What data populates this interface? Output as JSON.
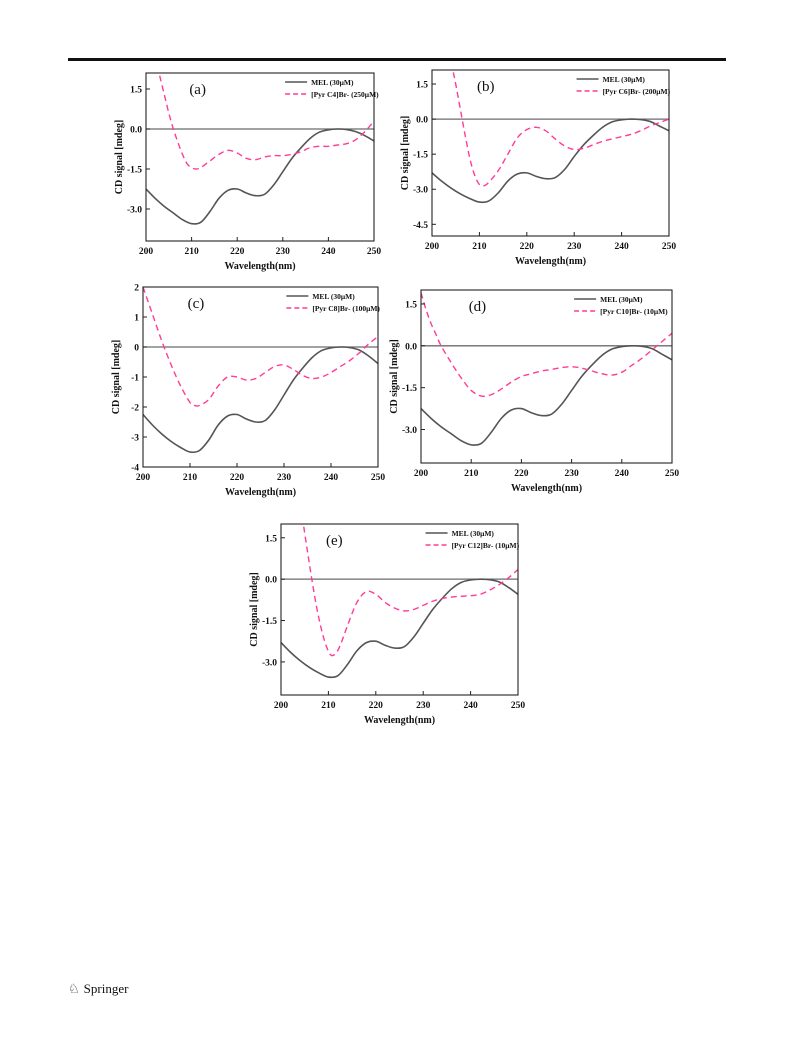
{
  "footer": {
    "publisher": "Springer",
    "logo_icon": "springer-horse-icon"
  },
  "colors": {
    "mel": "#555555",
    "il": "#ff3c96",
    "axis": "#222222"
  },
  "chart_data": [
    {
      "type": "line",
      "id": "a",
      "panel_label": "(a)",
      "xlabel": "Wavelength(nm)",
      "ylabel": "CD signal [mdeg]",
      "xlim": [
        200,
        250
      ],
      "ylim": [
        -4.2,
        2.1
      ],
      "xticks": [
        200,
        210,
        220,
        230,
        240,
        250
      ],
      "xtick_labels": [
        "200",
        "210",
        "220",
        "230",
        "240",
        "250"
      ],
      "yticks": [
        1.5,
        0,
        -1.5,
        -3
      ],
      "ytick_labels": [
        "1.5",
        "0.0",
        "-1.5",
        "-3.0"
      ],
      "zero_line": true,
      "legend": "top-right",
      "series": [
        {
          "name": "MEL (30μM)",
          "style": "solid",
          "x": [
            200,
            202,
            204,
            206,
            208,
            210,
            212,
            214,
            216,
            218,
            220,
            222,
            224,
            226,
            228,
            230,
            232,
            234,
            236,
            238,
            240,
            242,
            244,
            246,
            248,
            250
          ],
          "y": [
            -2.25,
            -2.6,
            -2.9,
            -3.15,
            -3.4,
            -3.55,
            -3.5,
            -3.1,
            -2.6,
            -2.3,
            -2.25,
            -2.4,
            -2.5,
            -2.45,
            -2.1,
            -1.6,
            -1.1,
            -0.7,
            -0.35,
            -0.12,
            -0.03,
            0.0,
            -0.02,
            -0.1,
            -0.25,
            -0.45
          ]
        },
        {
          "name": "[Pyr C4]Br- (250μM)",
          "style": "dashed",
          "x": [
            203,
            204,
            205,
            206,
            207,
            208,
            209,
            210,
            211,
            212,
            214,
            216,
            218,
            220,
            222,
            224,
            226,
            228,
            230,
            232,
            234,
            236,
            238,
            240,
            242,
            244,
            246,
            248,
            250
          ],
          "y": [
            2.0,
            1.3,
            0.6,
            0.0,
            -0.5,
            -0.95,
            -1.3,
            -1.45,
            -1.5,
            -1.45,
            -1.2,
            -0.95,
            -0.8,
            -0.9,
            -1.1,
            -1.15,
            -1.05,
            -1.0,
            -1.0,
            -0.95,
            -0.85,
            -0.7,
            -0.65,
            -0.65,
            -0.6,
            -0.55,
            -0.4,
            -0.1,
            0.3
          ]
        }
      ]
    },
    {
      "type": "line",
      "id": "b",
      "panel_label": "(b)",
      "xlabel": "Wavelength(nm)",
      "ylabel": "CD signal [mdeg]",
      "xlim": [
        200,
        250
      ],
      "ylim": [
        -5.0,
        2.1
      ],
      "xticks": [
        200,
        210,
        220,
        230,
        240,
        250
      ],
      "xtick_labels": [
        "200",
        "210",
        "220",
        "230",
        "240",
        "250"
      ],
      "yticks": [
        1.5,
        0,
        -1.5,
        -3,
        -4.5
      ],
      "ytick_labels": [
        "1.5",
        "0.0",
        "-1.5",
        "-3.0",
        "-4.5"
      ],
      "zero_line": true,
      "legend": "top-right",
      "series": [
        {
          "name": "MEL (30μM)",
          "style": "solid",
          "x": [
            200,
            202,
            204,
            206,
            208,
            210,
            212,
            214,
            216,
            218,
            220,
            222,
            224,
            226,
            228,
            230,
            232,
            234,
            236,
            238,
            240,
            242,
            244,
            246,
            248,
            250
          ],
          "y": [
            -2.3,
            -2.65,
            -2.95,
            -3.2,
            -3.4,
            -3.55,
            -3.5,
            -3.15,
            -2.65,
            -2.35,
            -2.3,
            -2.45,
            -2.55,
            -2.5,
            -2.15,
            -1.6,
            -1.1,
            -0.7,
            -0.35,
            -0.12,
            -0.03,
            0.0,
            -0.02,
            -0.1,
            -0.3,
            -0.5
          ]
        },
        {
          "name": "[Pyr C6]Br- (200μM)",
          "style": "dashed",
          "x": [
            204.5,
            205,
            206,
            207,
            208,
            209,
            210,
            211,
            212,
            214,
            216,
            218,
            220,
            222,
            224,
            226,
            228,
            230,
            232,
            234,
            236,
            238,
            240,
            242,
            244,
            246,
            248,
            250
          ],
          "y": [
            2.0,
            1.5,
            0.4,
            -0.7,
            -1.7,
            -2.4,
            -2.8,
            -2.85,
            -2.7,
            -2.2,
            -1.5,
            -0.8,
            -0.45,
            -0.35,
            -0.5,
            -0.85,
            -1.15,
            -1.3,
            -1.25,
            -1.1,
            -0.95,
            -0.85,
            -0.75,
            -0.65,
            -0.5,
            -0.3,
            -0.15,
            0.0
          ]
        }
      ]
    },
    {
      "type": "line",
      "id": "c",
      "panel_label": "(c)",
      "xlabel": "Wavelength(nm)",
      "ylabel": "CD signal [mdeg]",
      "xlim": [
        200,
        250
      ],
      "ylim": [
        -4,
        2
      ],
      "xticks": [
        200,
        210,
        220,
        230,
        240,
        250
      ],
      "xtick_labels": [
        "200",
        "210",
        "220",
        "230",
        "240",
        "250"
      ],
      "yticks": [
        2,
        1,
        0,
        -1,
        -2,
        -3,
        -4
      ],
      "ytick_labels": [
        "2",
        "1",
        "0",
        "-1",
        "-2",
        "-3",
        "-4"
      ],
      "zero_line": true,
      "legend": "top-right",
      "series": [
        {
          "name": "MEL (30μM)",
          "style": "solid",
          "x": [
            200,
            202,
            204,
            206,
            208,
            210,
            212,
            214,
            216,
            218,
            220,
            222,
            224,
            226,
            228,
            230,
            232,
            234,
            236,
            238,
            240,
            242,
            244,
            246,
            248,
            250
          ],
          "y": [
            -2.25,
            -2.6,
            -2.9,
            -3.15,
            -3.35,
            -3.5,
            -3.45,
            -3.1,
            -2.6,
            -2.3,
            -2.25,
            -2.4,
            -2.5,
            -2.45,
            -2.1,
            -1.6,
            -1.1,
            -0.7,
            -0.35,
            -0.12,
            -0.03,
            0.0,
            -0.02,
            -0.1,
            -0.3,
            -0.55
          ]
        },
        {
          "name": "[Pyr C8]Br- (100μM)",
          "style": "dashed",
          "x": [
            200,
            202,
            204,
            206,
            208,
            210,
            211,
            212,
            214,
            216,
            218,
            220,
            222,
            224,
            226,
            228,
            230,
            232,
            234,
            236,
            238,
            240,
            242,
            244,
            246,
            248,
            250
          ],
          "y": [
            2.0,
            1.1,
            0.2,
            -0.6,
            -1.3,
            -1.85,
            -1.95,
            -1.95,
            -1.75,
            -1.3,
            -1.0,
            -1.0,
            -1.1,
            -1.05,
            -0.85,
            -0.65,
            -0.6,
            -0.75,
            -0.95,
            -1.05,
            -1.0,
            -0.85,
            -0.65,
            -0.45,
            -0.2,
            0.1,
            0.35
          ]
        }
      ]
    },
    {
      "type": "line",
      "id": "d",
      "panel_label": "(d)",
      "xlabel": "Wavelength(nm)",
      "ylabel": "CD signal [mdeg]",
      "xlim": [
        200,
        250
      ],
      "ylim": [
        -4.2,
        2.0
      ],
      "xticks": [
        200,
        210,
        220,
        230,
        240,
        250
      ],
      "xtick_labels": [
        "200",
        "210",
        "220",
        "230",
        "240",
        "250"
      ],
      "yticks": [
        1.5,
        0,
        -1.5,
        -3
      ],
      "ytick_labels": [
        "1.5",
        "0.0",
        "-1.5",
        "-3.0"
      ],
      "zero_line": true,
      "legend": "top-right",
      "series": [
        {
          "name": "MEL (30μM)",
          "style": "solid",
          "x": [
            200,
            202,
            204,
            206,
            208,
            210,
            212,
            214,
            216,
            218,
            220,
            222,
            224,
            226,
            228,
            230,
            232,
            234,
            236,
            238,
            240,
            242,
            244,
            246,
            248,
            250
          ],
          "y": [
            -2.25,
            -2.6,
            -2.9,
            -3.15,
            -3.4,
            -3.55,
            -3.5,
            -3.1,
            -2.6,
            -2.3,
            -2.25,
            -2.4,
            -2.5,
            -2.45,
            -2.1,
            -1.6,
            -1.1,
            -0.7,
            -0.35,
            -0.12,
            -0.03,
            0.0,
            -0.02,
            -0.1,
            -0.3,
            -0.5
          ]
        },
        {
          "name": "[Pyr C10]Br- (10μM)",
          "style": "dashed",
          "x": [
            200,
            201,
            202,
            203,
            204,
            206,
            208,
            210,
            212,
            214,
            216,
            218,
            220,
            222,
            224,
            226,
            228,
            230,
            232,
            234,
            236,
            238,
            240,
            242,
            244,
            246,
            248,
            250
          ],
          "y": [
            1.9,
            1.3,
            0.8,
            0.4,
            0.0,
            -0.6,
            -1.15,
            -1.6,
            -1.8,
            -1.75,
            -1.55,
            -1.3,
            -1.1,
            -1.0,
            -0.9,
            -0.85,
            -0.78,
            -0.75,
            -0.8,
            -0.9,
            -1.0,
            -1.05,
            -0.95,
            -0.7,
            -0.45,
            -0.15,
            0.15,
            0.45
          ]
        }
      ]
    },
    {
      "type": "line",
      "id": "e",
      "panel_label": "(e)",
      "xlabel": "Wavelength(nm)",
      "ylabel": "CD signal [mdeg]",
      "xlim": [
        200,
        250
      ],
      "ylim": [
        -4.2,
        2.0
      ],
      "xticks": [
        200,
        210,
        220,
        230,
        240,
        250
      ],
      "xtick_labels": [
        "200",
        "210",
        "220",
        "230",
        "240",
        "250"
      ],
      "yticks": [
        1.5,
        0,
        -1.5,
        -3
      ],
      "ytick_labels": [
        "1.5",
        "0.0",
        "-1.5",
        "-3.0"
      ],
      "zero_line": true,
      "legend": "top-right",
      "series": [
        {
          "name": "MEL (30μM)",
          "style": "solid",
          "x": [
            200,
            202,
            204,
            206,
            208,
            210,
            212,
            214,
            216,
            218,
            220,
            222,
            224,
            226,
            228,
            230,
            232,
            234,
            236,
            238,
            240,
            242,
            244,
            246,
            248,
            250
          ],
          "y": [
            -2.3,
            -2.65,
            -2.95,
            -3.2,
            -3.4,
            -3.55,
            -3.5,
            -3.1,
            -2.6,
            -2.3,
            -2.25,
            -2.4,
            -2.5,
            -2.45,
            -2.1,
            -1.6,
            -1.1,
            -0.7,
            -0.35,
            -0.12,
            -0.03,
            0.0,
            -0.02,
            -0.1,
            -0.3,
            -0.55
          ]
        },
        {
          "name": "[Pyr C12]Br- (10μM)",
          "style": "dashed",
          "x": [
            204.8,
            205.5,
            206.5,
            207.5,
            208.5,
            209.5,
            210.5,
            211.5,
            212.5,
            214,
            216,
            218,
            220,
            222,
            224,
            226,
            228,
            230,
            232,
            234,
            236,
            238,
            240,
            242,
            244,
            246,
            248,
            250
          ],
          "y": [
            1.9,
            1.1,
            0.0,
            -1.0,
            -1.8,
            -2.4,
            -2.75,
            -2.7,
            -2.4,
            -1.7,
            -0.85,
            -0.45,
            -0.55,
            -0.85,
            -1.05,
            -1.15,
            -1.1,
            -0.95,
            -0.8,
            -0.7,
            -0.65,
            -0.62,
            -0.6,
            -0.55,
            -0.4,
            -0.2,
            0.05,
            0.35
          ]
        }
      ]
    }
  ]
}
